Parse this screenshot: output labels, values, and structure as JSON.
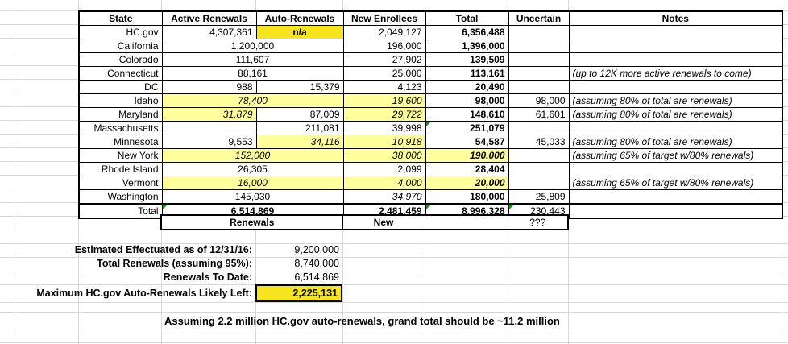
{
  "colors": {
    "pale_yellow_estimate": "#FFFF9E",
    "bright_yellow_highlight": "#F6E41C",
    "gridline_gray": "#D8D8D8",
    "warning_triangle_green": "#1F8F1F"
  },
  "table": {
    "headers": [
      "State",
      "Active Renewals",
      "Auto-Renewals",
      "New Enrollees",
      "Total",
      "Uncertain",
      "Notes"
    ],
    "rows": [
      {
        "state": "HC.gov",
        "cells": [
          {
            "v": "4,307,361"
          },
          {
            "v": "n/a",
            "style": "na-highlight"
          },
          {
            "v": "2,049,127"
          },
          {
            "v": "6,356,488",
            "style": "bold"
          },
          {
            "v": ""
          },
          {
            "v": ""
          }
        ]
      },
      {
        "state": "California",
        "cells": [
          {
            "v": "1,200,000",
            "span": 2
          },
          {
            "v": "196,000"
          },
          {
            "v": "1,396,000",
            "style": "bold"
          },
          {
            "v": ""
          },
          {
            "v": ""
          }
        ]
      },
      {
        "state": "Colorado",
        "cells": [
          {
            "v": "111,607",
            "span": 2
          },
          {
            "v": "27,902"
          },
          {
            "v": "139,509",
            "style": "bold"
          },
          {
            "v": ""
          },
          {
            "v": ""
          }
        ]
      },
      {
        "state": "Connecticut",
        "cells": [
          {
            "v": "88,161",
            "span": 2
          },
          {
            "v": "25,000"
          },
          {
            "v": "113,161",
            "style": "bold"
          },
          {
            "v": ""
          },
          {
            "v": "(up to 12K more active renewals to come)"
          }
        ]
      },
      {
        "state": "DC",
        "cells": [
          {
            "v": "988"
          },
          {
            "v": "15,379"
          },
          {
            "v": "4,123"
          },
          {
            "v": "20,490",
            "style": "bold"
          },
          {
            "v": ""
          },
          {
            "v": ""
          }
        ]
      },
      {
        "state": "Idaho",
        "cells": [
          {
            "v": "78,400",
            "span": 2,
            "style": "estimate"
          },
          {
            "v": "19,600",
            "style": "estimate"
          },
          {
            "v": "98,000",
            "style": "bold"
          },
          {
            "v": "98,000"
          },
          {
            "v": "(assuming 80% of total are renewals)"
          }
        ]
      },
      {
        "state": "Maryland",
        "cells": [
          {
            "v": "31,879",
            "style": "estimate"
          },
          {
            "v": "87,009"
          },
          {
            "v": "29,722",
            "style": "estimate"
          },
          {
            "v": "148,610",
            "style": "bold"
          },
          {
            "v": "61,601"
          },
          {
            "v": "(assuming 80% of total are renewals)"
          }
        ]
      },
      {
        "state": "Massachusetts",
        "cells": [
          {
            "v": ""
          },
          {
            "v": "211,081"
          },
          {
            "v": "39,998"
          },
          {
            "v": "251,079",
            "style": "bold",
            "tri": true
          },
          {
            "v": ""
          },
          {
            "v": ""
          }
        ]
      },
      {
        "state": "Minnesota",
        "cells": [
          {
            "v": "9,553"
          },
          {
            "v": "34,116",
            "style": "estimate"
          },
          {
            "v": "10,918",
            "style": "estimate"
          },
          {
            "v": "54,587",
            "style": "bold"
          },
          {
            "v": "45,033"
          },
          {
            "v": "(assuming 80% of total are renewals)"
          }
        ]
      },
      {
        "state": "New York",
        "cells": [
          {
            "v": "152,000",
            "span": 2,
            "style": "estimate"
          },
          {
            "v": "38,000",
            "style": "estimate"
          },
          {
            "v": "190,000",
            "style": "estimate-bold"
          },
          {
            "v": ""
          },
          {
            "v": "(assuming 65% of target w/80% renewals)"
          }
        ]
      },
      {
        "state": "Rhode Island",
        "cells": [
          {
            "v": "26,305",
            "span": 2
          },
          {
            "v": "2,099"
          },
          {
            "v": "28,404",
            "style": "bold"
          },
          {
            "v": ""
          },
          {
            "v": ""
          }
        ]
      },
      {
        "state": "Vermont",
        "cells": [
          {
            "v": "16,000",
            "span": 2,
            "style": "estimate"
          },
          {
            "v": "4,000",
            "style": "estimate"
          },
          {
            "v": "20,000",
            "style": "estimate-bold"
          },
          {
            "v": ""
          },
          {
            "v": "(assuming 65% of target w/80% renewals)"
          }
        ]
      },
      {
        "state": "Washington",
        "cells": [
          {
            "v": "145,030",
            "span": 2
          },
          {
            "v": "34,970",
            "style": "italic"
          },
          {
            "v": "180,000",
            "style": "bold"
          },
          {
            "v": "25,809"
          },
          {
            "v": ""
          }
        ]
      },
      {
        "state": "Total",
        "thickTop": true,
        "cells": [
          {
            "v": "6,514,869",
            "span": 2,
            "style": "bold",
            "tri": true
          },
          {
            "v": "2,481,459",
            "style": "bold"
          },
          {
            "v": "8,996,328",
            "style": "bold",
            "tri": true
          },
          {
            "v": "230,443",
            "tri": true
          },
          {
            "v": ""
          }
        ]
      }
    ],
    "footer": {
      "cells": [
        {
          "v": "Renewals",
          "style": "bold"
        },
        {
          "v": "New",
          "style": "bold"
        },
        {
          "v": ""
        },
        {
          "v": "???"
        }
      ]
    }
  },
  "summary": {
    "rows": [
      {
        "label": "Estimated Effectuated as of 12/31/16:",
        "value": "9,200,000"
      },
      {
        "label": "Total Renewals (assuming 95%):",
        "value": "8,740,000"
      },
      {
        "label": "Renewals To Date:",
        "value": "6,514,869"
      },
      {
        "label": "Maximum HC.gov Auto-Renewals Likely Left:",
        "value": "2,225,131",
        "highlight": true
      }
    ]
  },
  "note": "Assuming 2.2 million HC.gov auto-renewals, grand total should be ~11.2 million"
}
